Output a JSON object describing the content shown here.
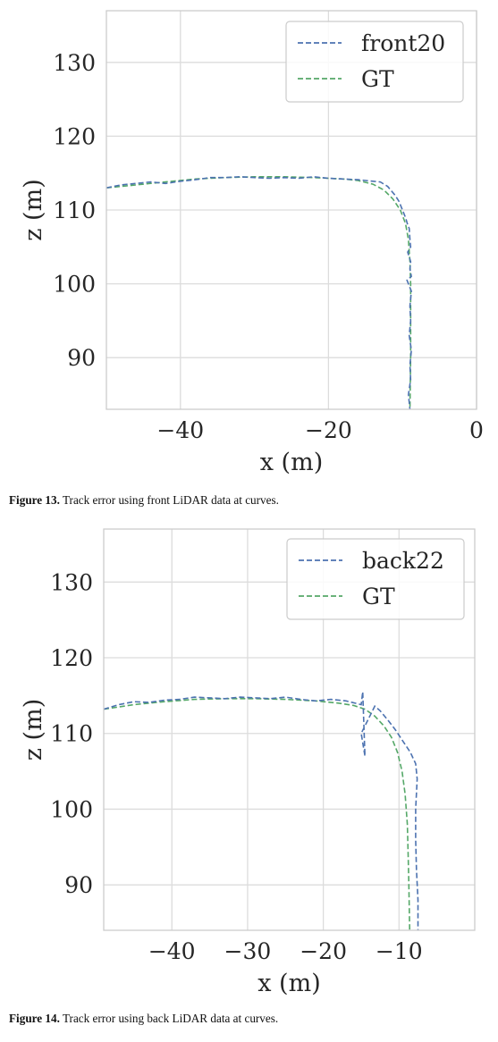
{
  "figures": [
    {
      "caption_label": "Figure 13.",
      "caption_text": " Track error using front LiDAR data at curves.",
      "chart_data": {
        "type": "line",
        "xlabel": "x (m)",
        "ylabel": "z (m)",
        "xlim": [
          -50,
          0
        ],
        "ylim": [
          83,
          137
        ],
        "xticks": [
          "−40",
          "−20",
          "0"
        ],
        "xtick_values": [
          -40,
          -20,
          0
        ],
        "yticks": [
          "90",
          "100",
          "110",
          "120",
          "130"
        ],
        "ytick_values": [
          90,
          100,
          110,
          120,
          130
        ],
        "grid": true,
        "legend_position": "top-right",
        "series": [
          {
            "name": "front20",
            "color": "#4c72b0",
            "x": [
              -50,
              -48,
              -46,
              -44,
              -42,
              -40,
              -38,
              -36,
              -34,
              -32,
              -30,
              -28,
              -26,
              -24,
              -22,
              -20,
              -18,
              -16,
              -14,
              -13,
              -12,
              -11,
              -10.5,
              -10,
              -9.6,
              -9.3,
              -9.1,
              -9.0,
              -8.9,
              -9.3,
              -8.9,
              -9.0,
              -8.8,
              -9.4,
              -8.8,
              -9.0,
              -8.9,
              -9.1,
              -8.8,
              -9.0,
              -8.9,
              -9.2,
              -9.0
            ],
            "y": [
              113.0,
              113.4,
              113.6,
              113.8,
              113.6,
              113.9,
              114.1,
              114.4,
              114.4,
              114.5,
              114.4,
              114.3,
              114.4,
              114.3,
              114.5,
              114.3,
              114.2,
              114.1,
              113.9,
              113.8,
              113.2,
              112.0,
              111.2,
              110.0,
              109.0,
              108.0,
              107.5,
              106.0,
              105.0,
              104.3,
              103.0,
              102.0,
              101.0,
              100.5,
              99.0,
              97.0,
              95.0,
              93.0,
              91.0,
              89.0,
              87.0,
              85.0,
              83.0
            ]
          },
          {
            "name": "GT",
            "color": "#55a868",
            "x": [
              -50,
              -46,
              -42,
              -38,
              -34,
              -30,
              -26,
              -22,
              -18,
              -16,
              -14,
              -12.5,
              -11.3,
              -10.3,
              -9.6,
              -9.2,
              -9.0,
              -8.9,
              -8.9,
              -8.9,
              -9.0
            ],
            "y": [
              113.0,
              113.4,
              113.8,
              114.2,
              114.4,
              114.5,
              114.5,
              114.4,
              114.2,
              114.0,
              113.5,
              112.7,
              111.5,
              110.0,
              108.2,
              106.0,
              103.0,
              100.0,
              95.0,
              90.0,
              83.0
            ]
          }
        ]
      }
    },
    {
      "caption_label": "Figure 14.",
      "caption_text": " Track error using back LiDAR data at curves.",
      "chart_data": {
        "type": "line",
        "xlabel": "x (m)",
        "ylabel": "z (m)",
        "xlim": [
          -49,
          0
        ],
        "ylim": [
          84,
          137
        ],
        "xticks": [
          "−40",
          "−30",
          "−20",
          "−10"
        ],
        "xtick_values": [
          -40,
          -30,
          -20,
          -10
        ],
        "yticks": [
          "90",
          "100",
          "110",
          "120",
          "130"
        ],
        "ytick_values": [
          90,
          100,
          110,
          120,
          130
        ],
        "grid": true,
        "legend_position": "top-right",
        "series": [
          {
            "name": "back22",
            "color": "#4c72b0",
            "x": [
              -49,
              -47,
              -45,
              -43,
              -41,
              -39,
              -37,
              -35,
              -33,
              -31,
              -29,
              -27,
              -25,
              -23,
              -21,
              -19,
              -17,
              -15,
              -14.8,
              -14.5,
              -15,
              -13.2,
              -12.5,
              -11.5,
              -10.5,
              -9.5,
              -8.5,
              -7.8,
              -7.6,
              -7.8,
              -7.8,
              -7.7,
              -7.5,
              -7.5
            ],
            "y": [
              113.2,
              113.8,
              114.2,
              114.1,
              114.4,
              114.5,
              114.8,
              114.7,
              114.6,
              114.8,
              114.7,
              114.6,
              114.8,
              114.5,
              114.3,
              114.5,
              114.3,
              113.8,
              115.5,
              107.0,
              110.0,
              113.6,
              113.0,
              111.8,
              110.5,
              109.0,
              107.5,
              106.0,
              104.0,
              100.0,
              96.0,
              92.0,
              88.0,
              84.0
            ]
          },
          {
            "name": "GT",
            "color": "#55a868",
            "x": [
              -49,
              -45,
              -41,
              -37,
              -33,
              -29,
              -25,
              -21,
              -18,
              -16,
              -14.5,
              -13.2,
              -12,
              -11,
              -10.2,
              -9.6,
              -9.2,
              -8.9,
              -8.8,
              -8.7,
              -8.6
            ],
            "y": [
              113.2,
              113.8,
              114.2,
              114.5,
              114.6,
              114.6,
              114.5,
              114.3,
              114.0,
              113.7,
              113.2,
              112.3,
              111.0,
              109.5,
              107.5,
              105.0,
              102.0,
              98.0,
              94.0,
              90.0,
              84.0
            ]
          }
        ]
      }
    }
  ]
}
